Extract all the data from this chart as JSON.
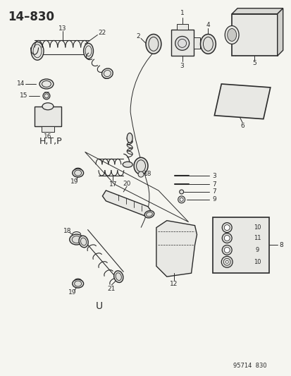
{
  "title": "14–830",
  "part_number": "95714  830",
  "bg": "#f5f5f0",
  "lc": "#2a2a2a",
  "fig_width": 4.14,
  "fig_height": 5.33,
  "dpi": 100
}
